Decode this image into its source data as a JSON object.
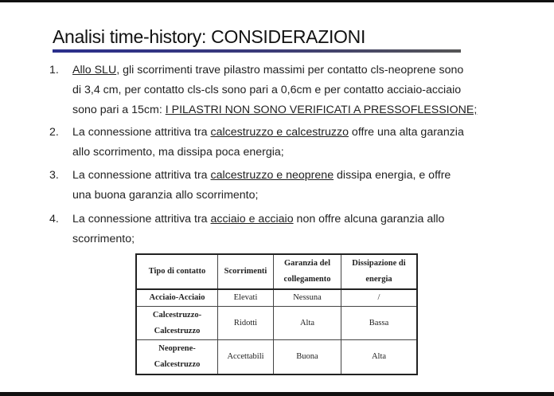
{
  "title": "Analisi time-history: CONSIDERAZIONI",
  "colors": {
    "rule_start": "#2b2f8c",
    "rule_end": "#555555"
  },
  "items": [
    {
      "number": "1.",
      "lines": [
        [
          {
            "t": "Allo SLU",
            "u": true
          },
          {
            "t": ", gli scorrimenti trave pilastro massimi per contatto cls-neoprene sono",
            "u": false
          }
        ],
        [
          {
            "t": "di 3,4 cm, per contatto cls-cls sono pari a 0,6cm e per contatto acciaio-acciaio",
            "u": false
          }
        ],
        [
          {
            "t": "sono pari a 15cm: ",
            "u": false
          },
          {
            "t": "I PILASTRI NON SONO VERIFICATI A PRESSOFLESSIONE;",
            "u": true
          }
        ]
      ]
    },
    {
      "number": "2.",
      "lines": [
        [
          {
            "t": "La connessione attritiva tra ",
            "u": false
          },
          {
            "t": "calcestruzzo e calcestruzzo",
            "u": true
          },
          {
            "t": " offre una alta garanzia",
            "u": false
          }
        ],
        [
          {
            "t": "allo scorrimento, ma dissipa poca energia;",
            "u": false
          }
        ]
      ]
    },
    {
      "number": "3.",
      "lines": [
        [
          {
            "t": "La connessione attritiva tra ",
            "u": false
          },
          {
            "t": "calcestruzzo e neoprene",
            "u": true
          },
          {
            "t": " dissipa energia, e offre",
            "u": false
          }
        ],
        [
          {
            "t": "una buona garanzia allo scorrimento;",
            "u": false
          }
        ]
      ]
    },
    {
      "number": "4.",
      "lines": [
        [
          {
            "t": "La connessione attritiva tra ",
            "u": false
          },
          {
            "t": "acciaio e acciaio",
            "u": true
          },
          {
            "t": " non offre alcuna garanzia allo",
            "u": false
          }
        ],
        [
          {
            "t": "scorrimento;",
            "u": false
          }
        ]
      ]
    }
  ],
  "table": {
    "headers": [
      "Tipo di contatto",
      "Scorrimenti",
      "Garanzia del collegamento",
      "Dissipazione di energia"
    ],
    "rows": [
      [
        "Acciaio-Acciaio",
        "Elevati",
        "Nessuna",
        "/"
      ],
      [
        "Calcestruzzo-Calcestruzzo",
        "Ridotti",
        "Alta",
        "Bassa"
      ],
      [
        "Neoprene-Calcestruzzo",
        "Accettabili",
        "Buona",
        "Alta"
      ]
    ]
  }
}
